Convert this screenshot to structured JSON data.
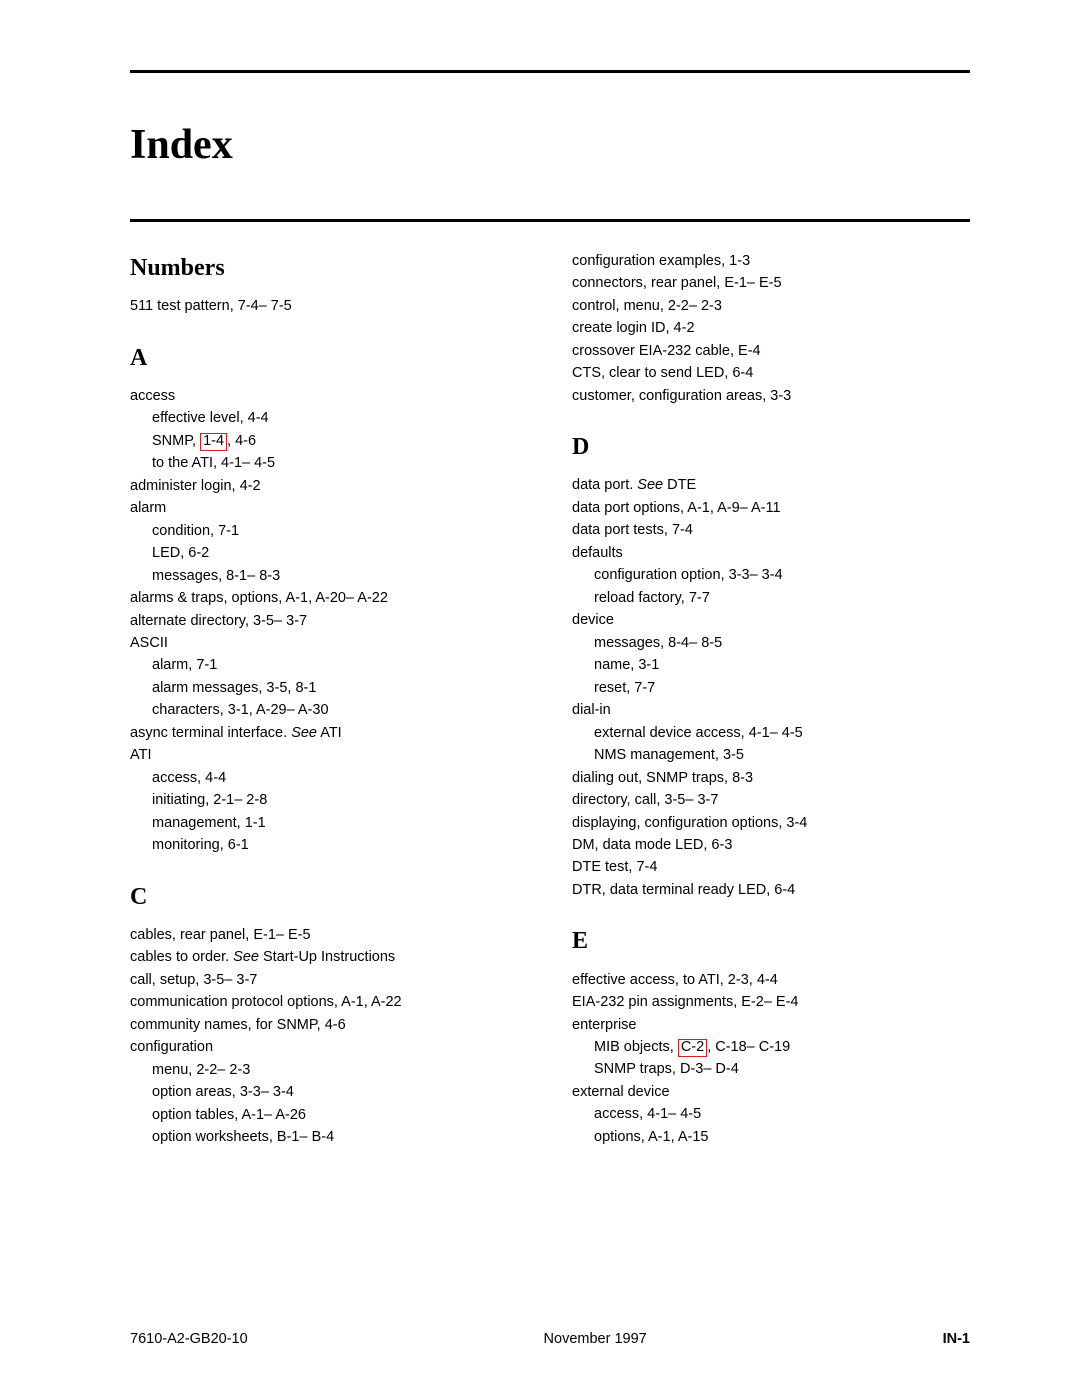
{
  "title": "Index",
  "footer": {
    "left": "7610-A2-GB20-10",
    "center": "November 1997",
    "right": "IN-1"
  },
  "linkbox_border_color": "#d02020",
  "columns": [
    {
      "sections": [
        {
          "heading": "Numbers",
          "entries": [
            {
              "level": 0,
              "segments": [
                {
                  "text": "511 test pattern,  7-4– 7-5"
                }
              ]
            }
          ]
        },
        {
          "heading": "A",
          "entries": [
            {
              "level": 0,
              "segments": [
                {
                  "text": "access"
                }
              ]
            },
            {
              "level": 1,
              "segments": [
                {
                  "text": "effective level,  4-4"
                }
              ]
            },
            {
              "level": 1,
              "segments": [
                {
                  "text": "SNMP,  "
                },
                {
                  "text": "1-4",
                  "linkbox": true
                },
                {
                  "text": ",  4-6"
                }
              ]
            },
            {
              "level": 1,
              "segments": [
                {
                  "text": "to the ATI,  4-1– 4-5"
                }
              ]
            },
            {
              "level": 0,
              "segments": [
                {
                  "text": "administer login,  4-2"
                }
              ]
            },
            {
              "level": 0,
              "segments": [
                {
                  "text": "alarm"
                }
              ]
            },
            {
              "level": 1,
              "segments": [
                {
                  "text": "condition,  7-1"
                }
              ]
            },
            {
              "level": 1,
              "segments": [
                {
                  "text": "LED,  6-2"
                }
              ]
            },
            {
              "level": 1,
              "segments": [
                {
                  "text": "messages,  8-1– 8-3"
                }
              ]
            },
            {
              "level": 0,
              "segments": [
                {
                  "text": "alarms & traps, options,  A-1,  A-20– A-22"
                }
              ]
            },
            {
              "level": 0,
              "segments": [
                {
                  "text": "alternate directory,  3-5– 3-7"
                }
              ]
            },
            {
              "level": 0,
              "segments": [
                {
                  "text": "ASCII"
                }
              ]
            },
            {
              "level": 1,
              "segments": [
                {
                  "text": "alarm,  7-1"
                }
              ]
            },
            {
              "level": 1,
              "segments": [
                {
                  "text": "alarm messages,  3-5,  8-1"
                }
              ]
            },
            {
              "level": 1,
              "segments": [
                {
                  "text": "characters,  3-1,  A-29– A-30"
                }
              ]
            },
            {
              "level": 0,
              "segments": [
                {
                  "text": "async terminal interface. "
                },
                {
                  "text": "See",
                  "italic": true
                },
                {
                  "text": " ATI"
                }
              ]
            },
            {
              "level": 0,
              "segments": [
                {
                  "text": "ATI"
                }
              ]
            },
            {
              "level": 1,
              "segments": [
                {
                  "text": "access,  4-4"
                }
              ]
            },
            {
              "level": 1,
              "segments": [
                {
                  "text": "initiating,  2-1– 2-8"
                }
              ]
            },
            {
              "level": 1,
              "segments": [
                {
                  "text": "management,  1-1"
                }
              ]
            },
            {
              "level": 1,
              "segments": [
                {
                  "text": "monitoring,  6-1"
                }
              ]
            }
          ]
        },
        {
          "heading": "C",
          "entries": [
            {
              "level": 0,
              "segments": [
                {
                  "text": "cables, rear panel,  E-1– E-5"
                }
              ]
            },
            {
              "level": 0,
              "segments": [
                {
                  "text": "cables to order. "
                },
                {
                  "text": "See",
                  "italic": true
                },
                {
                  "text": " Start-Up Instructions"
                }
              ]
            },
            {
              "level": 0,
              "segments": [
                {
                  "text": "call, setup,  3-5– 3-7"
                }
              ]
            },
            {
              "level": 0,
              "segments": [
                {
                  "text": "communication protocol options,  A-1,  A-22"
                }
              ]
            },
            {
              "level": 0,
              "segments": [
                {
                  "text": "community names, for SNMP,  4-6"
                }
              ]
            },
            {
              "level": 0,
              "segments": [
                {
                  "text": "configuration"
                }
              ]
            },
            {
              "level": 1,
              "segments": [
                {
                  "text": "menu,  2-2– 2-3"
                }
              ]
            },
            {
              "level": 1,
              "segments": [
                {
                  "text": "option areas,  3-3– 3-4"
                }
              ]
            },
            {
              "level": 1,
              "segments": [
                {
                  "text": "option tables,  A-1– A-26"
                }
              ]
            },
            {
              "level": 1,
              "segments": [
                {
                  "text": "option worksheets,  B-1– B-4"
                }
              ]
            }
          ]
        }
      ]
    },
    {
      "sections": [
        {
          "heading": null,
          "entries": [
            {
              "level": 0,
              "segments": [
                {
                  "text": "configuration examples,  1-3"
                }
              ]
            },
            {
              "level": 0,
              "segments": [
                {
                  "text": "connectors, rear panel,  E-1– E-5"
                }
              ]
            },
            {
              "level": 0,
              "segments": [
                {
                  "text": "control, menu,  2-2– 2-3"
                }
              ]
            },
            {
              "level": 0,
              "segments": [
                {
                  "text": "create login ID,  4-2"
                }
              ]
            },
            {
              "level": 0,
              "segments": [
                {
                  "text": "crossover EIA-232 cable,  E-4"
                }
              ]
            },
            {
              "level": 0,
              "segments": [
                {
                  "text": "CTS, clear to send LED,  6-4"
                }
              ]
            },
            {
              "level": 0,
              "segments": [
                {
                  "text": "customer, configuration areas,  3-3"
                }
              ]
            }
          ]
        },
        {
          "heading": "D",
          "entries": [
            {
              "level": 0,
              "segments": [
                {
                  "text": "data port. "
                },
                {
                  "text": "See",
                  "italic": true
                },
                {
                  "text": " DTE"
                }
              ]
            },
            {
              "level": 0,
              "segments": [
                {
                  "text": "data port options,  A-1,  A-9– A-11"
                }
              ]
            },
            {
              "level": 0,
              "segments": [
                {
                  "text": "data port tests,  7-4"
                }
              ]
            },
            {
              "level": 0,
              "segments": [
                {
                  "text": "defaults"
                }
              ]
            },
            {
              "level": 1,
              "segments": [
                {
                  "text": "configuration option,  3-3– 3-4"
                }
              ]
            },
            {
              "level": 1,
              "segments": [
                {
                  "text": "reload factory,  7-7"
                }
              ]
            },
            {
              "level": 0,
              "segments": [
                {
                  "text": "device"
                }
              ]
            },
            {
              "level": 1,
              "segments": [
                {
                  "text": "messages,  8-4– 8-5"
                }
              ]
            },
            {
              "level": 1,
              "segments": [
                {
                  "text": "name,  3-1"
                }
              ]
            },
            {
              "level": 1,
              "segments": [
                {
                  "text": "reset,  7-7"
                }
              ]
            },
            {
              "level": 0,
              "segments": [
                {
                  "text": "dial-in"
                }
              ]
            },
            {
              "level": 1,
              "segments": [
                {
                  "text": "external device access,  4-1– 4-5"
                }
              ]
            },
            {
              "level": 1,
              "segments": [
                {
                  "text": "NMS management,  3-5"
                }
              ]
            },
            {
              "level": 0,
              "segments": [
                {
                  "text": "dialing out, SNMP traps,  8-3"
                }
              ]
            },
            {
              "level": 0,
              "segments": [
                {
                  "text": "directory, call,  3-5– 3-7"
                }
              ]
            },
            {
              "level": 0,
              "segments": [
                {
                  "text": "displaying, configuration options,  3-4"
                }
              ]
            },
            {
              "level": 0,
              "segments": [
                {
                  "text": "DM, data mode LED,  6-3"
                }
              ]
            },
            {
              "level": 0,
              "segments": [
                {
                  "text": "DTE test,  7-4"
                }
              ]
            },
            {
              "level": 0,
              "segments": [
                {
                  "text": "DTR, data terminal ready LED,  6-4"
                }
              ]
            }
          ]
        },
        {
          "heading": "E",
          "entries": [
            {
              "level": 0,
              "segments": [
                {
                  "text": "effective access, to ATI,  2-3,  4-4"
                }
              ]
            },
            {
              "level": 0,
              "segments": [
                {
                  "text": "EIA-232 pin assignments,  E-2– E-4"
                }
              ]
            },
            {
              "level": 0,
              "segments": [
                {
                  "text": "enterprise"
                }
              ]
            },
            {
              "level": 1,
              "segments": [
                {
                  "text": "MIB objects,  "
                },
                {
                  "text": "C-2",
                  "linkbox": true
                },
                {
                  "text": ",  C-18– C-19"
                }
              ]
            },
            {
              "level": 1,
              "segments": [
                {
                  "text": "SNMP traps,  D-3– D-4"
                }
              ]
            },
            {
              "level": 0,
              "segments": [
                {
                  "text": "external device"
                }
              ]
            },
            {
              "level": 1,
              "segments": [
                {
                  "text": "access,  4-1– 4-5"
                }
              ]
            },
            {
              "level": 1,
              "segments": [
                {
                  "text": "options,  A-1,  A-15"
                }
              ]
            }
          ]
        }
      ]
    }
  ]
}
